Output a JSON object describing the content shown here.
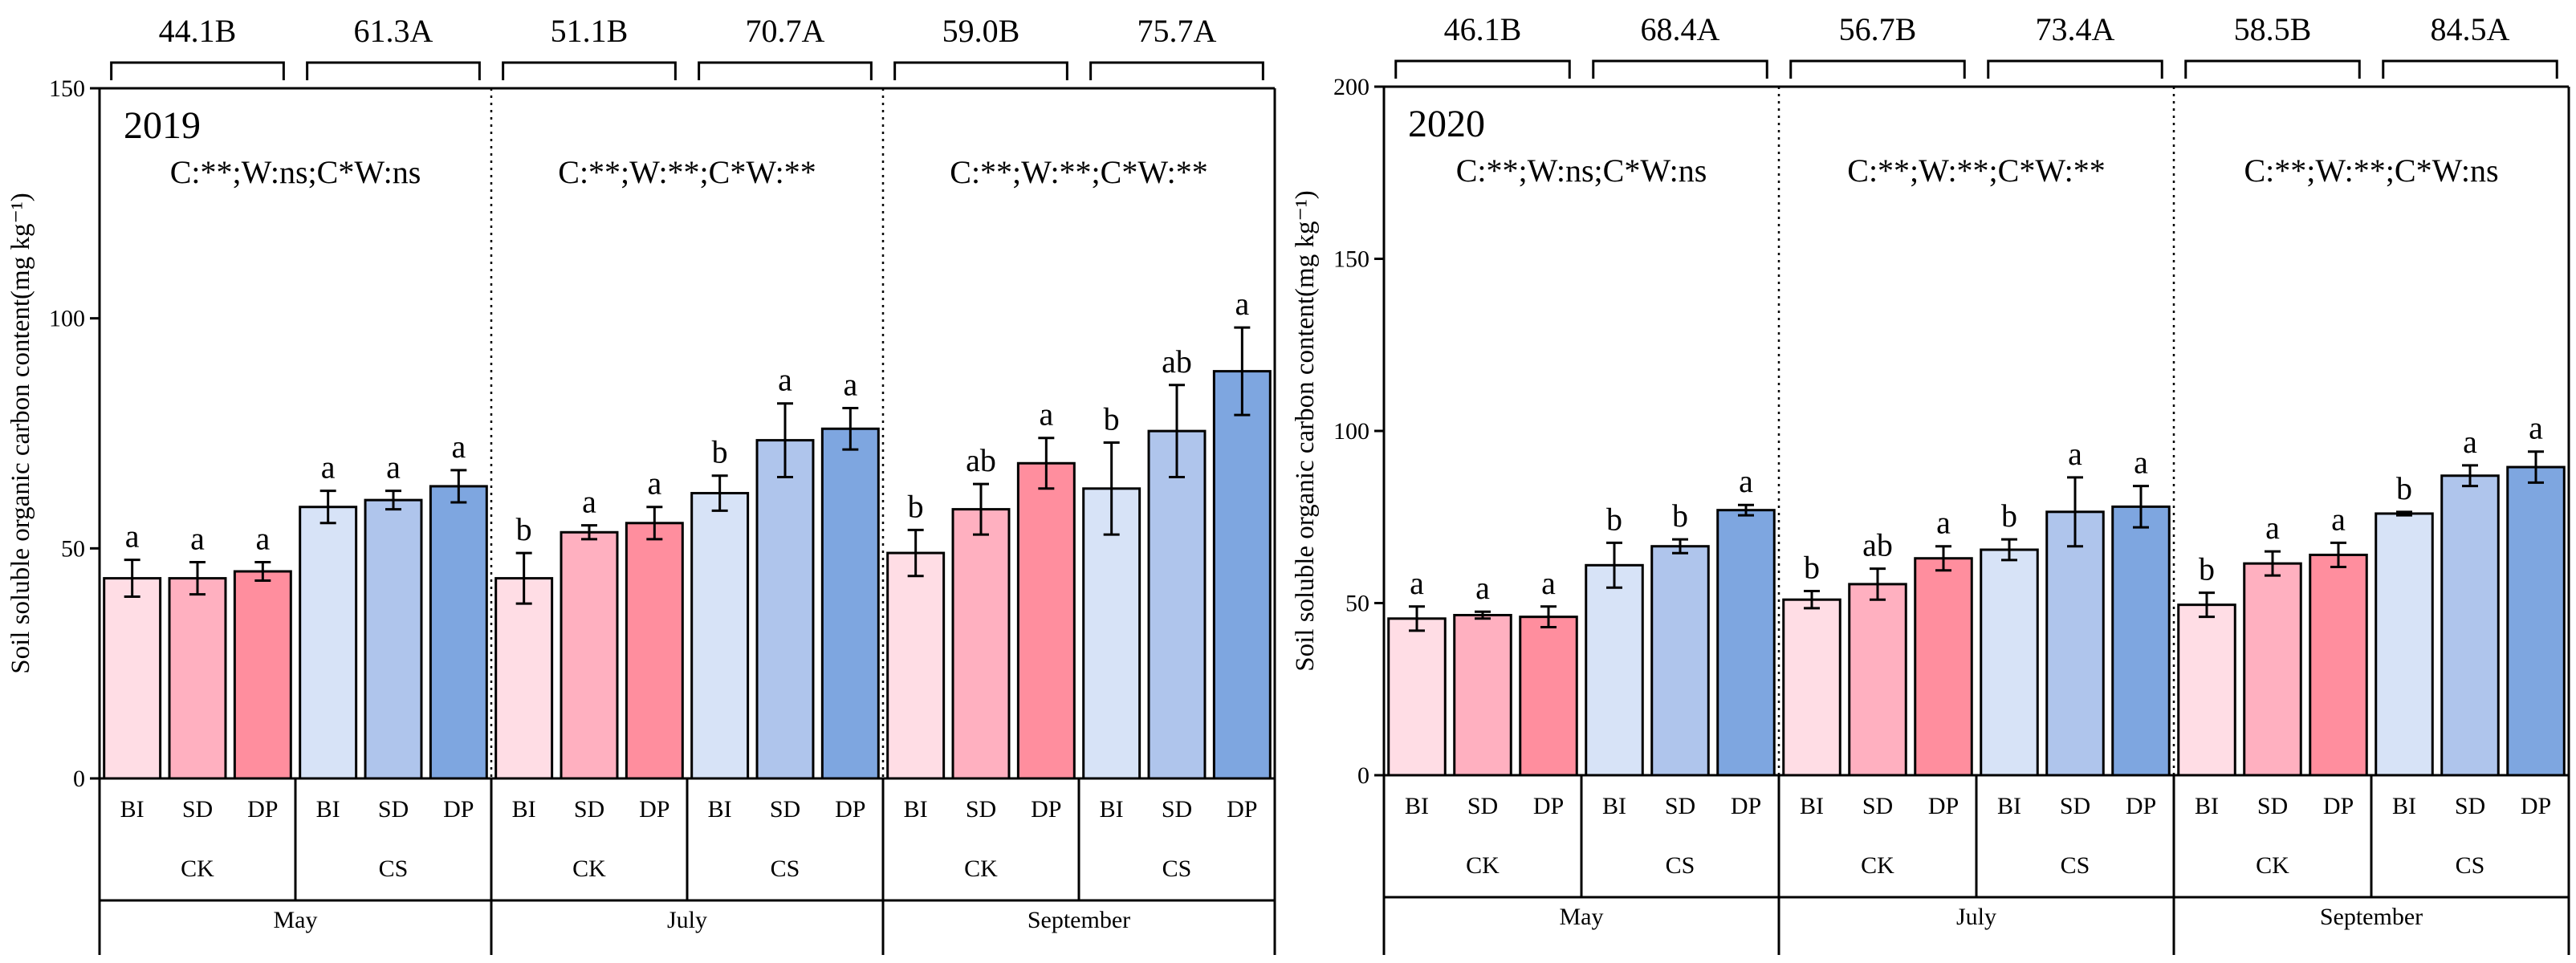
{
  "colors": {
    "BI_CK": "#ffdde5",
    "SD_CK": "#ffb0c0",
    "DP_CK": "#ff8e9e",
    "BI_CS": "#d7e3f7",
    "SD_CS": "#afc5ec",
    "DP_CS": "#7ea6e0"
  },
  "chart_data": [
    {
      "type": "bar",
      "year_label": "2019",
      "ylabel": "Soil soluble organic carbon content(mg kg⁻¹)",
      "ylim": [
        0,
        150
      ],
      "yticks": [
        "0",
        "50",
        "100",
        "150"
      ],
      "months": [
        {
          "name": "May",
          "stat_text": "C:**;W:ns;C*W:ns",
          "groups": [
            {
              "name": "CK",
              "mean_label": "44.1B",
              "bars": [
                {
                  "cat": "BI",
                  "value": 43.5,
                  "err": 4.0,
                  "letter": "a"
                },
                {
                  "cat": "SD",
                  "value": 43.5,
                  "err": 3.5,
                  "letter": "a"
                },
                {
                  "cat": "DP",
                  "value": 45.0,
                  "err": 2.0,
                  "letter": "a"
                }
              ]
            },
            {
              "name": "CS",
              "mean_label": "61.3A",
              "bars": [
                {
                  "cat": "BI",
                  "value": 59.0,
                  "err": 3.5,
                  "letter": "a"
                },
                {
                  "cat": "SD",
                  "value": 60.5,
                  "err": 2.0,
                  "letter": "a"
                },
                {
                  "cat": "DP",
                  "value": 63.5,
                  "err": 3.5,
                  "letter": "a"
                }
              ]
            }
          ]
        },
        {
          "name": "July",
          "stat_text": "C:**;W:**;C*W:**",
          "groups": [
            {
              "name": "CK",
              "mean_label": "51.1B",
              "bars": [
                {
                  "cat": "BI",
                  "value": 43.5,
                  "err": 5.5,
                  "letter": "b"
                },
                {
                  "cat": "SD",
                  "value": 53.5,
                  "err": 1.5,
                  "letter": "a"
                },
                {
                  "cat": "DP",
                  "value": 55.5,
                  "err": 3.5,
                  "letter": "a"
                }
              ]
            },
            {
              "name": "CS",
              "mean_label": "70.7A",
              "bars": [
                {
                  "cat": "BI",
                  "value": 62.0,
                  "err": 3.8,
                  "letter": "b"
                },
                {
                  "cat": "SD",
                  "value": 73.5,
                  "err": 8.0,
                  "letter": "a"
                },
                {
                  "cat": "DP",
                  "value": 76.0,
                  "err": 4.5,
                  "letter": "a"
                }
              ]
            }
          ]
        },
        {
          "name": "September",
          "stat_text": "C:**;W:**;C*W:**",
          "groups": [
            {
              "name": "CK",
              "mean_label": "59.0B",
              "bars": [
                {
                  "cat": "BI",
                  "value": 49.0,
                  "err": 5.0,
                  "letter": "b"
                },
                {
                  "cat": "SD",
                  "value": 58.5,
                  "err": 5.5,
                  "letter": "ab"
                },
                {
                  "cat": "DP",
                  "value": 68.5,
                  "err": 5.5,
                  "letter": "a"
                }
              ]
            },
            {
              "name": "CS",
              "mean_label": "75.7A",
              "bars": [
                {
                  "cat": "BI",
                  "value": 63.0,
                  "err": 10.0,
                  "letter": "b"
                },
                {
                  "cat": "SD",
                  "value": 75.5,
                  "err": 10.0,
                  "letter": "ab"
                },
                {
                  "cat": "DP",
                  "value": 88.5,
                  "err": 9.5,
                  "letter": "a"
                }
              ]
            }
          ]
        }
      ]
    },
    {
      "type": "bar",
      "year_label": "2020",
      "ylabel": "Soil soluble organic carbon content(mg kg⁻¹)",
      "ylim": [
        0,
        200
      ],
      "yticks": [
        "0",
        "50",
        "100",
        "150",
        "200"
      ],
      "months": [
        {
          "name": "May",
          "stat_text": "C:**;W:ns;C*W:ns",
          "groups": [
            {
              "name": "CK",
              "mean_label": "46.1B",
              "bars": [
                {
                  "cat": "BI",
                  "value": 45.5,
                  "err": 3.5,
                  "letter": "a"
                },
                {
                  "cat": "SD",
                  "value": 46.5,
                  "err": 1.0,
                  "letter": "a"
                },
                {
                  "cat": "DP",
                  "value": 46.0,
                  "err": 3.0,
                  "letter": "a"
                }
              ]
            },
            {
              "name": "CS",
              "mean_label": "68.4A",
              "bars": [
                {
                  "cat": "BI",
                  "value": 61.0,
                  "err": 6.5,
                  "letter": "b"
                },
                {
                  "cat": "SD",
                  "value": 66.5,
                  "err": 2.0,
                  "letter": "b"
                },
                {
                  "cat": "DP",
                  "value": 77.0,
                  "err": 1.5,
                  "letter": "a"
                }
              ]
            }
          ]
        },
        {
          "name": "July",
          "stat_text": "C:**;W:**;C*W:**",
          "groups": [
            {
              "name": "CK",
              "mean_label": "56.7B",
              "bars": [
                {
                  "cat": "BI",
                  "value": 51.0,
                  "err": 2.5,
                  "letter": "b"
                },
                {
                  "cat": "SD",
                  "value": 55.5,
                  "err": 4.5,
                  "letter": "ab"
                },
                {
                  "cat": "DP",
                  "value": 63.0,
                  "err": 3.5,
                  "letter": "a"
                }
              ]
            },
            {
              "name": "CS",
              "mean_label": "73.4A",
              "bars": [
                {
                  "cat": "BI",
                  "value": 65.5,
                  "err": 3.0,
                  "letter": "b"
                },
                {
                  "cat": "SD",
                  "value": 76.5,
                  "err": 10.0,
                  "letter": "a"
                },
                {
                  "cat": "DP",
                  "value": 78.0,
                  "err": 6.0,
                  "letter": "a"
                }
              ]
            }
          ]
        },
        {
          "name": "September",
          "stat_text": "C:**;W:**;C*W:ns",
          "groups": [
            {
              "name": "CK",
              "mean_label": "58.5B",
              "bars": [
                {
                  "cat": "BI",
                  "value": 49.5,
                  "err": 3.5,
                  "letter": "b"
                },
                {
                  "cat": "SD",
                  "value": 61.5,
                  "err": 3.5,
                  "letter": "a"
                },
                {
                  "cat": "DP",
                  "value": 64.0,
                  "err": 3.5,
                  "letter": "a"
                }
              ]
            },
            {
              "name": "CS",
              "mean_label": "84.5A",
              "bars": [
                {
                  "cat": "BI",
                  "value": 76.0,
                  "err": 0.5,
                  "letter": "b"
                },
                {
                  "cat": "SD",
                  "value": 87.0,
                  "err": 3.0,
                  "letter": "a"
                },
                {
                  "cat": "DP",
                  "value": 89.5,
                  "err": 4.5,
                  "letter": "a"
                }
              ]
            }
          ]
        }
      ]
    }
  ]
}
